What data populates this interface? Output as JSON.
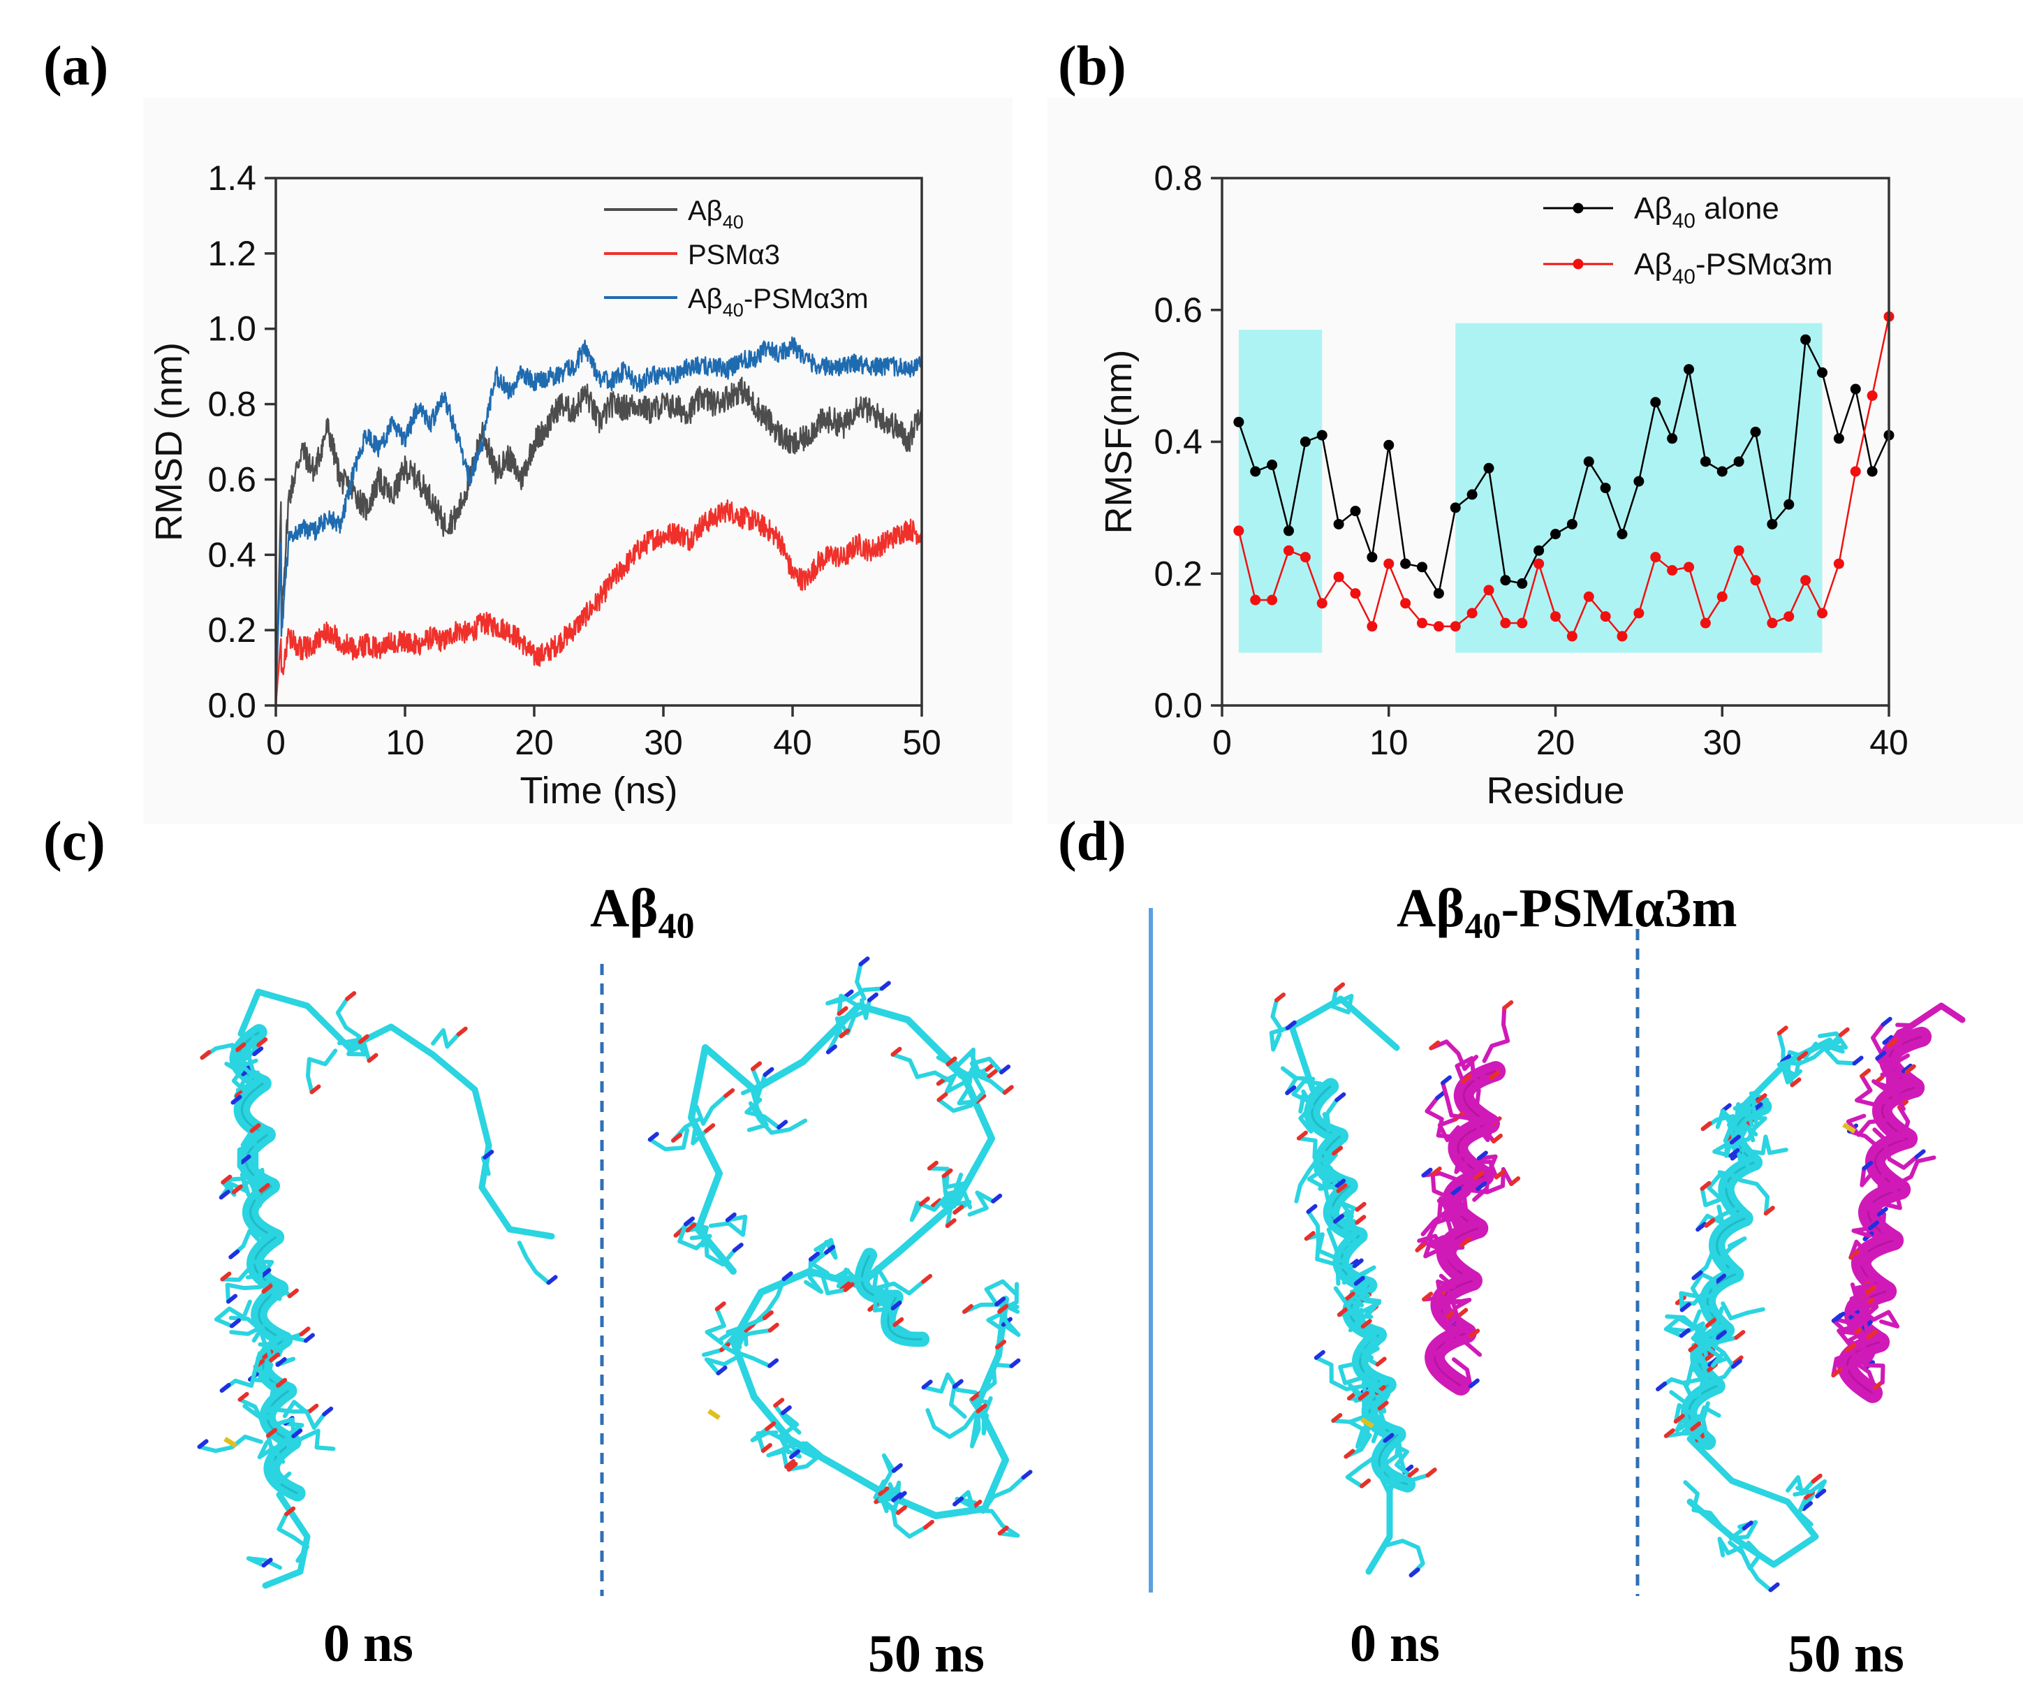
{
  "panels": {
    "a": "(a)",
    "b": "(b)",
    "c": "(c)",
    "d": "(d)"
  },
  "chart_data": [
    {
      "type": "line",
      "panel": "a",
      "title": "",
      "xlabel": "Time (ns)",
      "ylabel": "RMSD (nm)",
      "xlim": [
        0,
        50
      ],
      "ylim": [
        0,
        1.4
      ],
      "xticks": [
        0,
        10,
        20,
        30,
        40,
        50
      ],
      "yticks": [
        0.0,
        0.2,
        0.4,
        0.6,
        0.8,
        1.0,
        1.2,
        1.4
      ],
      "ytick_labels": [
        "0.0",
        "0.2",
        "0.4",
        "0.6",
        "0.8",
        "1.0",
        "1.2",
        "1.4"
      ],
      "legend_position": "top-right",
      "series": [
        {
          "name": "Aβ40",
          "legend_main": "Aβ",
          "legend_sub": "40",
          "legend_tail": "",
          "color": "#4d4d4d",
          "x": [
            0,
            1,
            2,
            3,
            4,
            5,
            6,
            7,
            8,
            9,
            10,
            11,
            12,
            13,
            14,
            15,
            16,
            17,
            18,
            19,
            20,
            21,
            22,
            23,
            24,
            25,
            26,
            27,
            28,
            29,
            30,
            31,
            32,
            33,
            34,
            35,
            36,
            37,
            38,
            39,
            40,
            41,
            42,
            43,
            44,
            45,
            46,
            47,
            48,
            49,
            50
          ],
          "values": [
            0.0,
            0.55,
            0.68,
            0.62,
            0.74,
            0.6,
            0.57,
            0.52,
            0.6,
            0.55,
            0.63,
            0.6,
            0.55,
            0.48,
            0.5,
            0.6,
            0.73,
            0.62,
            0.66,
            0.6,
            0.7,
            0.74,
            0.8,
            0.78,
            0.83,
            0.75,
            0.8,
            0.79,
            0.8,
            0.78,
            0.8,
            0.79,
            0.78,
            0.82,
            0.8,
            0.82,
            0.84,
            0.8,
            0.76,
            0.72,
            0.69,
            0.71,
            0.75,
            0.76,
            0.74,
            0.8,
            0.78,
            0.76,
            0.74,
            0.7,
            0.8
          ],
          "noise": 0.035
        },
        {
          "name": "PSMα3",
          "legend_main": "PSMα3",
          "legend_sub": "",
          "legend_tail": "",
          "color": "#f0302a",
          "x": [
            0,
            1,
            2,
            3,
            4,
            5,
            6,
            7,
            8,
            9,
            10,
            11,
            12,
            13,
            14,
            15,
            16,
            17,
            18,
            19,
            20,
            21,
            22,
            23,
            24,
            25,
            26,
            27,
            28,
            29,
            30,
            31,
            32,
            33,
            34,
            35,
            36,
            37,
            38,
            39,
            40,
            41,
            42,
            43,
            44,
            45,
            46,
            47,
            48,
            49,
            50
          ],
          "values": [
            0.0,
            0.18,
            0.15,
            0.16,
            0.2,
            0.17,
            0.15,
            0.16,
            0.15,
            0.17,
            0.17,
            0.16,
            0.18,
            0.17,
            0.2,
            0.19,
            0.22,
            0.21,
            0.2,
            0.17,
            0.13,
            0.14,
            0.17,
            0.2,
            0.24,
            0.28,
            0.33,
            0.37,
            0.41,
            0.44,
            0.45,
            0.46,
            0.44,
            0.48,
            0.5,
            0.52,
            0.5,
            0.49,
            0.47,
            0.44,
            0.35,
            0.33,
            0.38,
            0.4,
            0.39,
            0.43,
            0.41,
            0.43,
            0.45,
            0.47,
            0.45
          ],
          "noise": 0.03
        },
        {
          "name": "Aβ40-PSMα3m",
          "legend_main": "Aβ",
          "legend_sub": "40",
          "legend_tail": "-PSMα3m",
          "color": "#1f6bb0",
          "x": [
            0,
            1,
            2,
            3,
            4,
            5,
            6,
            7,
            8,
            9,
            10,
            11,
            12,
            13,
            14,
            15,
            16,
            17,
            18,
            19,
            20,
            21,
            22,
            23,
            24,
            25,
            26,
            27,
            28,
            29,
            30,
            31,
            32,
            33,
            34,
            35,
            36,
            37,
            38,
            39,
            40,
            41,
            42,
            43,
            44,
            45,
            46,
            47,
            48,
            49,
            50
          ],
          "values": [
            0.0,
            0.44,
            0.47,
            0.46,
            0.5,
            0.48,
            0.62,
            0.72,
            0.68,
            0.75,
            0.7,
            0.8,
            0.75,
            0.82,
            0.72,
            0.6,
            0.7,
            0.88,
            0.83,
            0.88,
            0.86,
            0.87,
            0.88,
            0.9,
            0.95,
            0.87,
            0.86,
            0.89,
            0.85,
            0.88,
            0.87,
            0.88,
            0.9,
            0.9,
            0.9,
            0.89,
            0.92,
            0.92,
            0.95,
            0.93,
            0.96,
            0.92,
            0.9,
            0.9,
            0.9,
            0.91,
            0.9,
            0.9,
            0.9,
            0.89,
            0.91
          ],
          "noise": 0.025
        }
      ]
    },
    {
      "type": "line",
      "panel": "b",
      "title": "",
      "xlabel": "Residue",
      "ylabel": "RMSF(nm)",
      "xlim": [
        0,
        40
      ],
      "ylim": [
        0,
        0.8
      ],
      "xticks": [
        0,
        10,
        20,
        30,
        40
      ],
      "yticks": [
        0.0,
        0.2,
        0.4,
        0.6,
        0.8
      ],
      "ytick_labels": [
        "0.0",
        "0.2",
        "0.4",
        "0.6",
        "0.8"
      ],
      "legend_position": "top-right",
      "shaded_regions": [
        {
          "x": [
            1,
            6
          ],
          "y": [
            0.08,
            0.57
          ],
          "color": "#aef3f3"
        },
        {
          "x": [
            14,
            36
          ],
          "y": [
            0.08,
            0.58
          ],
          "color": "#aef3f3"
        }
      ],
      "series": [
        {
          "name": "Aβ40 alone",
          "legend_main": "Aβ",
          "legend_sub": "40",
          "legend_tail": " alone",
          "color": "#000000",
          "x": [
            1,
            2,
            3,
            4,
            5,
            6,
            7,
            8,
            9,
            10,
            11,
            12,
            13,
            14,
            15,
            16,
            17,
            18,
            19,
            20,
            21,
            22,
            23,
            24,
            25,
            26,
            27,
            28,
            29,
            30,
            31,
            32,
            33,
            34,
            35,
            36,
            37,
            38,
            39,
            40
          ],
          "values": [
            0.43,
            0.355,
            0.365,
            0.265,
            0.4,
            0.41,
            0.275,
            0.295,
            0.225,
            0.395,
            0.215,
            0.21,
            0.17,
            0.3,
            0.32,
            0.36,
            0.19,
            0.185,
            0.235,
            0.26,
            0.275,
            0.37,
            0.33,
            0.26,
            0.34,
            0.46,
            0.405,
            0.51,
            0.37,
            0.355,
            0.37,
            0.415,
            0.275,
            0.305,
            0.555,
            0.505,
            0.405,
            0.48,
            0.355,
            0.41
          ]
        },
        {
          "name": "Aβ40-PSMα3m",
          "legend_main": "Aβ",
          "legend_sub": "40",
          "legend_tail": "-PSMα3m",
          "color": "#f01010",
          "x": [
            1,
            2,
            3,
            4,
            5,
            6,
            7,
            8,
            9,
            10,
            11,
            12,
            13,
            14,
            15,
            16,
            17,
            18,
            19,
            20,
            21,
            22,
            23,
            24,
            25,
            26,
            27,
            28,
            29,
            30,
            31,
            32,
            33,
            34,
            35,
            36,
            37,
            38,
            39,
            40
          ],
          "values": [
            0.265,
            0.16,
            0.16,
            0.235,
            0.225,
            0.155,
            0.195,
            0.17,
            0.12,
            0.215,
            0.155,
            0.125,
            0.12,
            0.12,
            0.14,
            0.175,
            0.125,
            0.125,
            0.215,
            0.135,
            0.105,
            0.165,
            0.135,
            0.105,
            0.14,
            0.225,
            0.205,
            0.21,
            0.125,
            0.165,
            0.235,
            0.19,
            0.125,
            0.135,
            0.19,
            0.14,
            0.215,
            0.355,
            0.47,
            0.59
          ]
        }
      ]
    }
  ],
  "structures": {
    "c_title_main": "Aβ",
    "c_title_sub": "40",
    "c_title_tail": "",
    "d_title_main": "Aβ",
    "d_title_sub": "40",
    "d_title_tail": "-PSMα3m",
    "times": [
      "0 ns",
      "50 ns",
      "0 ns",
      "50 ns"
    ],
    "colors": {
      "abeta": "#2ad4e0",
      "abeta_dark": "#19aab6",
      "psm": "#d01ab8",
      "psm_dark": "#a8108f",
      "oxygen": "#e8302a",
      "nitrogen": "#2030e0",
      "sulfur": "#e0c020",
      "divider_dashed": "#2f6fb5",
      "divider_solid": "#5aa0e0"
    }
  }
}
